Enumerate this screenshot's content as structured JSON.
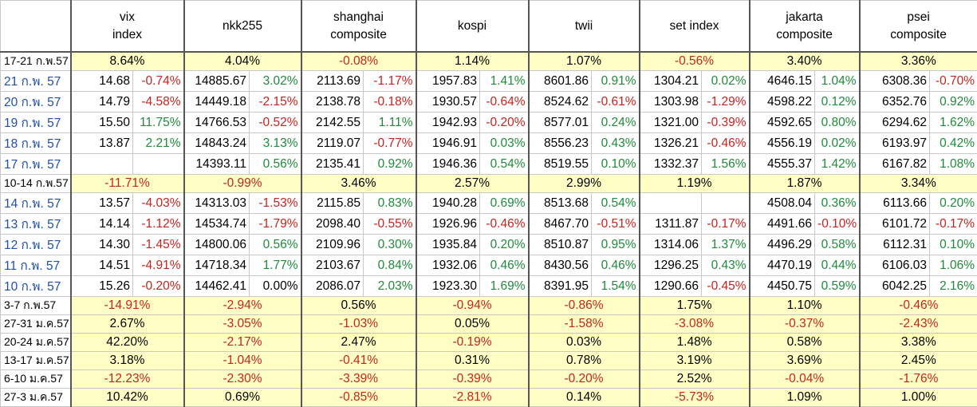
{
  "headers": [
    "vix\nindex",
    "nkk255",
    "shanghai\ncomposite",
    "kospi",
    "twii",
    "set index",
    "jakarta\ncomposite",
    "psei\ncomposite"
  ],
  "rows": [
    {
      "type": "week",
      "label": "17-21 ก.พ.57",
      "values": [
        "8.64%",
        "4.04%",
        "-0.08%",
        "1.14%",
        "1.07%",
        "-0.56%",
        "3.40%",
        "3.36%"
      ]
    },
    {
      "type": "daily",
      "label": "21 ก.พ. 57",
      "cells": [
        [
          "14.68",
          "-0.74%"
        ],
        [
          "14885.67",
          "3.02%"
        ],
        [
          "2113.69",
          "-1.17%"
        ],
        [
          "1957.83",
          "1.41%"
        ],
        [
          "8601.86",
          "0.91%"
        ],
        [
          "1304.21",
          "0.02%"
        ],
        [
          "4646.15",
          "1.04%"
        ],
        [
          "6308.36",
          "-0.70%"
        ]
      ]
    },
    {
      "type": "daily",
      "label": "20 ก.พ. 57",
      "cells": [
        [
          "14.79",
          "-4.58%"
        ],
        [
          "14449.18",
          "-2.15%"
        ],
        [
          "2138.78",
          "-0.18%"
        ],
        [
          "1930.57",
          "-0.64%"
        ],
        [
          "8524.62",
          "-0.61%"
        ],
        [
          "1303.98",
          "-1.29%"
        ],
        [
          "4598.22",
          "0.12%"
        ],
        [
          "6352.76",
          "0.92%"
        ]
      ]
    },
    {
      "type": "daily",
      "label": "19 ก.พ. 57",
      "cells": [
        [
          "15.50",
          "11.75%"
        ],
        [
          "14766.53",
          "-0.52%"
        ],
        [
          "2142.55",
          "1.11%"
        ],
        [
          "1942.93",
          "-0.20%"
        ],
        [
          "8577.01",
          "0.24%"
        ],
        [
          "1321.00",
          "-0.39%"
        ],
        [
          "4592.65",
          "0.80%"
        ],
        [
          "6294.62",
          "1.62%"
        ]
      ]
    },
    {
      "type": "daily",
      "label": "18 ก.พ. 57",
      "cells": [
        [
          "13.87",
          "2.21%"
        ],
        [
          "14843.24",
          "3.13%"
        ],
        [
          "2119.07",
          "-0.77%"
        ],
        [
          "1946.91",
          "0.03%"
        ],
        [
          "8556.23",
          "0.43%"
        ],
        [
          "1326.21",
          "-0.46%"
        ],
        [
          "4556.19",
          "0.02%"
        ],
        [
          "6193.97",
          "0.42%"
        ]
      ]
    },
    {
      "type": "daily",
      "label": "17 ก.พ. 57",
      "cells": [
        [
          "",
          ""
        ],
        [
          "14393.11",
          "0.56%"
        ],
        [
          "2135.41",
          "0.92%"
        ],
        [
          "1946.36",
          "0.54%"
        ],
        [
          "8519.55",
          "0.10%"
        ],
        [
          "1332.37",
          "1.56%"
        ],
        [
          "4555.37",
          "1.42%"
        ],
        [
          "6167.82",
          "1.08%"
        ]
      ]
    },
    {
      "type": "week",
      "label": "10-14 ก.พ.57",
      "values": [
        "-11.71%",
        "-0.99%",
        "3.46%",
        "2.57%",
        "2.99%",
        "1.19%",
        "1.87%",
        "3.34%"
      ]
    },
    {
      "type": "daily",
      "label": "14 ก.พ. 57",
      "cells": [
        [
          "13.57",
          "-4.03%"
        ],
        [
          "14313.03",
          "-1.53%"
        ],
        [
          "2115.85",
          "0.83%"
        ],
        [
          "1940.28",
          "0.69%"
        ],
        [
          "8513.68",
          "0.54%"
        ],
        [
          "",
          ""
        ],
        [
          "4508.04",
          "0.36%"
        ],
        [
          "6113.66",
          "0.20%"
        ]
      ]
    },
    {
      "type": "daily",
      "label": "13 ก.พ. 57",
      "cells": [
        [
          "14.14",
          "-1.12%"
        ],
        [
          "14534.74",
          "-1.79%"
        ],
        [
          "2098.40",
          "-0.55%"
        ],
        [
          "1926.96",
          "-0.46%"
        ],
        [
          "8467.70",
          "-0.51%"
        ],
        [
          "1311.87",
          "-0.17%"
        ],
        [
          "4491.66",
          "-0.10%"
        ],
        [
          "6101.72",
          "-0.17%"
        ]
      ]
    },
    {
      "type": "daily",
      "label": "12 ก.พ. 57",
      "cells": [
        [
          "14.30",
          "-1.45%"
        ],
        [
          "14800.06",
          "0.56%"
        ],
        [
          "2109.96",
          "0.30%"
        ],
        [
          "1935.84",
          "0.20%"
        ],
        [
          "8510.87",
          "0.95%"
        ],
        [
          "1314.06",
          "1.37%"
        ],
        [
          "4496.29",
          "0.58%"
        ],
        [
          "6112.31",
          "0.10%"
        ]
      ]
    },
    {
      "type": "daily",
      "label": "11 ก.พ. 57",
      "cells": [
        [
          "14.51",
          "-4.91%"
        ],
        [
          "14718.34",
          "1.77%"
        ],
        [
          "2103.67",
          "0.84%"
        ],
        [
          "1932.06",
          "0.46%"
        ],
        [
          "8430.56",
          "0.46%"
        ],
        [
          "1296.25",
          "0.43%"
        ],
        [
          "4470.19",
          "0.44%"
        ],
        [
          "6106.03",
          "1.06%"
        ]
      ]
    },
    {
      "type": "daily",
      "label": "10 ก.พ. 57",
      "cells": [
        [
          "15.26",
          "-0.20%"
        ],
        [
          "14462.41",
          "0.00%"
        ],
        [
          "2086.07",
          "2.03%"
        ],
        [
          "1923.30",
          "1.69%"
        ],
        [
          "8391.95",
          "1.54%"
        ],
        [
          "1290.66",
          "-0.45%"
        ],
        [
          "4450.75",
          "0.59%"
        ],
        [
          "6042.25",
          "2.16%"
        ]
      ]
    },
    {
      "type": "week",
      "label": "3-7 ก.พ.57",
      "values": [
        "-14.91%",
        "-2.94%",
        "0.56%",
        "-0.94%",
        "-0.86%",
        "1.75%",
        "1.10%",
        "-0.46%"
      ]
    },
    {
      "type": "week",
      "label": "27-31 ม.ค.57",
      "values": [
        "2.67%",
        "-3.05%",
        "-1.03%",
        "0.05%",
        "-1.58%",
        "-3.08%",
        "-0.37%",
        "-2.43%"
      ]
    },
    {
      "type": "week",
      "label": "20-24 ม.ค.57",
      "values": [
        "42.20%",
        "-2.17%",
        "2.47%",
        "-0.19%",
        "0.03%",
        "1.48%",
        "0.58%",
        "3.38%"
      ]
    },
    {
      "type": "week",
      "label": "13-17 ม.ค.57",
      "values": [
        "3.18%",
        "-1.04%",
        "-0.41%",
        "0.31%",
        "0.78%",
        "3.19%",
        "3.69%",
        "2.45%"
      ]
    },
    {
      "type": "week",
      "label": "6-10 ม.ค.57",
      "values": [
        "-12.23%",
        "-2.30%",
        "-3.39%",
        "-0.39%",
        "-0.20%",
        "2.52%",
        "-0.04%",
        "-1.76%"
      ]
    },
    {
      "type": "week",
      "label": "27-3 ม.ค.57",
      "values": [
        "10.42%",
        "0.69%",
        "-0.85%",
        "-2.81%",
        "0.14%",
        "-5.73%",
        "1.09%",
        "1.00%"
      ]
    }
  ],
  "colors": {
    "positive": "#1f8a3b",
    "negative": "#c8231e",
    "week_bg": "#ffffc5",
    "daily_label": "#1f4fa8"
  }
}
